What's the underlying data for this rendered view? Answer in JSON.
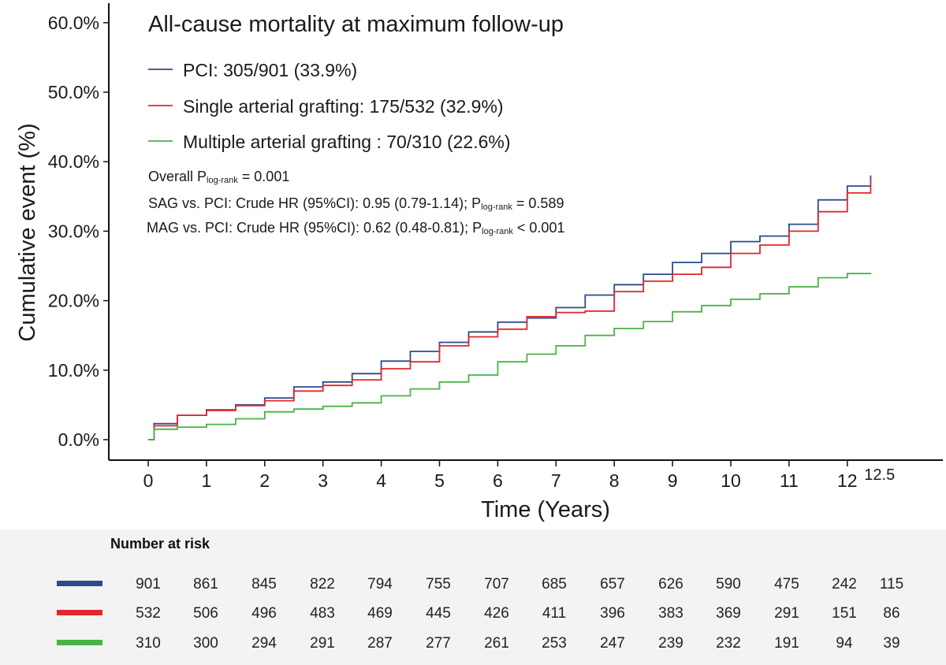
{
  "chart_data": {
    "type": "line",
    "subtype": "kaplan-meier cumulative incidence (step)",
    "title": "All-cause mortality at maximum follow-up",
    "xlabel": "Time (Years)",
    "ylabel": "Cumulative event (%)",
    "xlim": [
      0,
      13.5
    ],
    "ylim": [
      0,
      60
    ],
    "x_ticks": [
      "0",
      "1",
      "2",
      "3",
      "4",
      "5",
      "6",
      "7",
      "8",
      "9",
      "10",
      "11",
      "12",
      "12.5"
    ],
    "y_ticks": [
      "0.0%",
      "10.0%",
      "20.0%",
      "30.0%",
      "40.0%",
      "50.0%",
      "60.0%"
    ],
    "grid": false,
    "legend_position": "top-left",
    "series": [
      {
        "name": "PCI: 305/901 (33.9%)",
        "color": "#2a4b8d",
        "x": [
          0,
          0.1,
          0.5,
          1,
          1.5,
          2,
          2.5,
          3,
          3.5,
          4,
          4.5,
          5,
          5.5,
          6,
          6.5,
          7,
          7.5,
          8,
          8.5,
          9,
          9.5,
          10,
          10.5,
          11,
          11.5,
          12,
          12.4
        ],
        "y": [
          0,
          2.3,
          3.5,
          4.3,
          5.0,
          6.0,
          7.6,
          8.3,
          9.5,
          11.3,
          12.7,
          14.0,
          15.5,
          16.9,
          17.5,
          19.0,
          20.8,
          22.3,
          23.8,
          25.5,
          26.8,
          28.5,
          29.3,
          31.0,
          34.5,
          36.5,
          38.0
        ]
      },
      {
        "name": "Single arterial grafting: 175/532 (32.9%)",
        "color": "#e3262b",
        "x": [
          0,
          0.1,
          0.5,
          1,
          1.5,
          2,
          2.5,
          3,
          3.5,
          4,
          4.5,
          5,
          5.5,
          6,
          6.5,
          7,
          7.5,
          8,
          8.5,
          9,
          9.5,
          10,
          10.5,
          11,
          11.5,
          12,
          12.4
        ],
        "y": [
          0,
          2.0,
          3.5,
          4.2,
          4.9,
          5.6,
          7.0,
          7.8,
          8.6,
          10.2,
          11.2,
          13.5,
          14.8,
          15.9,
          17.7,
          18.3,
          18.5,
          21.3,
          22.8,
          23.8,
          24.8,
          26.8,
          28.0,
          30.0,
          32.8,
          35.5,
          37.4
        ]
      },
      {
        "name": "Multiple arterial grafting : 70/310 (22.6%)",
        "color": "#47b445",
        "x": [
          0,
          0.1,
          0.5,
          1,
          1.5,
          2,
          2.5,
          3,
          3.5,
          4,
          4.5,
          5,
          5.5,
          6,
          6.5,
          7,
          7.5,
          8,
          8.5,
          9,
          9.5,
          10,
          10.5,
          11,
          11.5,
          12,
          12.4
        ],
        "y": [
          0,
          1.5,
          1.8,
          2.2,
          3.0,
          4.0,
          4.4,
          4.8,
          5.3,
          6.3,
          7.3,
          8.3,
          9.3,
          11.2,
          12.3,
          13.5,
          15.0,
          16.0,
          17.0,
          18.4,
          19.3,
          20.2,
          21.0,
          22.0,
          23.3,
          23.9,
          24.0
        ]
      }
    ],
    "annotations": {
      "overall_prefix": "Overall P",
      "overall_sub": "log-rank",
      "overall_suffix": " = 0.001",
      "sag_prefix": "SAG vs. PCI: Crude HR (95%CI): 0.95 (0.79-1.14); P",
      "sag_sub": "log-rank",
      "sag_suffix": " = 0.589",
      "mag_prefix": "MAG vs. PCI: Crude HR (95%CI): 0.62 (0.48-0.81); P",
      "mag_sub": "log-rank",
      "mag_suffix": " < 0.001"
    }
  },
  "risk_table": {
    "title": "Number at risk",
    "rows": [
      {
        "color": "#2a4b8d",
        "values": [
          "901",
          "861",
          "845",
          "822",
          "794",
          "755",
          "707",
          "685",
          "657",
          "626",
          "590",
          "475",
          "242",
          "115"
        ]
      },
      {
        "color": "#e3262b",
        "values": [
          "532",
          "506",
          "496",
          "483",
          "469",
          "445",
          "426",
          "411",
          "396",
          "383",
          "369",
          "291",
          "151",
          "86"
        ]
      },
      {
        "color": "#47b445",
        "values": [
          "310",
          "300",
          "294",
          "291",
          "287",
          "277",
          "261",
          "253",
          "247",
          "239",
          "232",
          "191",
          "94",
          "39"
        ]
      }
    ]
  }
}
